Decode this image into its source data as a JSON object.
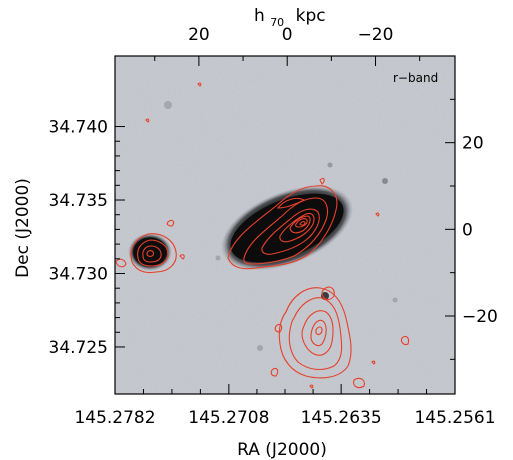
{
  "colors": {
    "contour": "#e8402a",
    "sky": "#c5c8cf",
    "galaxy_core": "#0b0b0c",
    "axis": "#000000"
  },
  "chart_data": {
    "type": "image",
    "band_label": "r−band",
    "xlabel": "RA (J2000)",
    "ylabel": "Dec (J2000)",
    "top_axis_label_main": "h",
    "top_axis_label_sub": "70",
    "top_axis_label_unit": "kpc",
    "x_ticks": [
      "145.2782",
      "145.2708",
      "145.2635",
      "145.2561"
    ],
    "y_ticks": [
      "34.725",
      "34.730",
      "34.735",
      "34.740"
    ],
    "top_ticks": [
      "20",
      "0",
      "−20"
    ],
    "right_ticks": [
      "20",
      "0",
      "−20"
    ],
    "xlim": [
      145.2782,
      145.2561
    ],
    "ylim": [
      34.7218,
      34.7448
    ],
    "top_lim_kpc": [
      39,
      -38
    ],
    "right_lim_kpc": [
      -38,
      40
    ]
  }
}
